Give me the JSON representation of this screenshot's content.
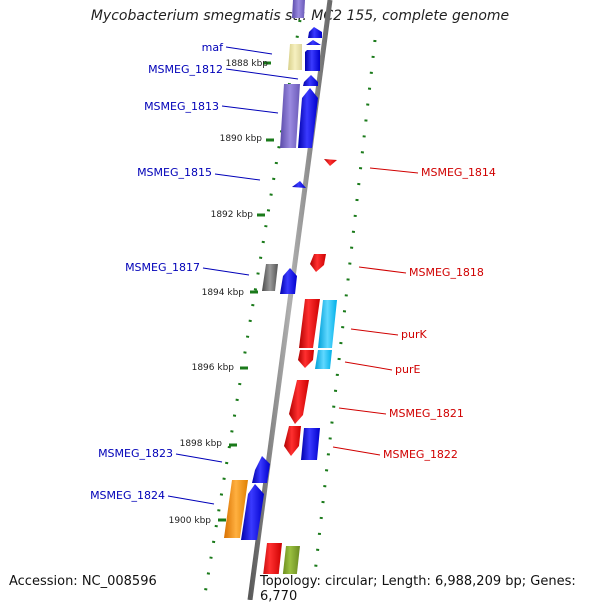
{
  "title": "Mycobacterium smegmatis str. MC2 155, complete genome",
  "footer": {
    "accession": "Accession: NC_008596",
    "summary": "Topology: circular; Length: 6,988,209 bp; Genes: 6,770"
  },
  "ticks": [
    "1888 kbp",
    "1890 kbp",
    "1892 kbp",
    "1894 kbp",
    "1896 kbp",
    "1898 kbp",
    "1900 kbp"
  ],
  "genes_left": [
    "maf",
    "MSMEG_1812",
    "MSMEG_1813",
    "MSMEG_1815",
    "MSMEG_1817",
    "MSMEG_1823",
    "MSMEG_1824"
  ],
  "genes_right": [
    "MSMEG_1814",
    "MSMEG_1818",
    "purK",
    "purE",
    "MSMEG_1821",
    "MSMEG_1822"
  ],
  "colors": {
    "forward_label": "#0000b8",
    "reverse_label": "#d00000",
    "forward_cds": "#0000ee",
    "reverse_cds": "#ee0000",
    "dotted_track": "#1a7a1a",
    "backbone": "#7a7a7a"
  }
}
